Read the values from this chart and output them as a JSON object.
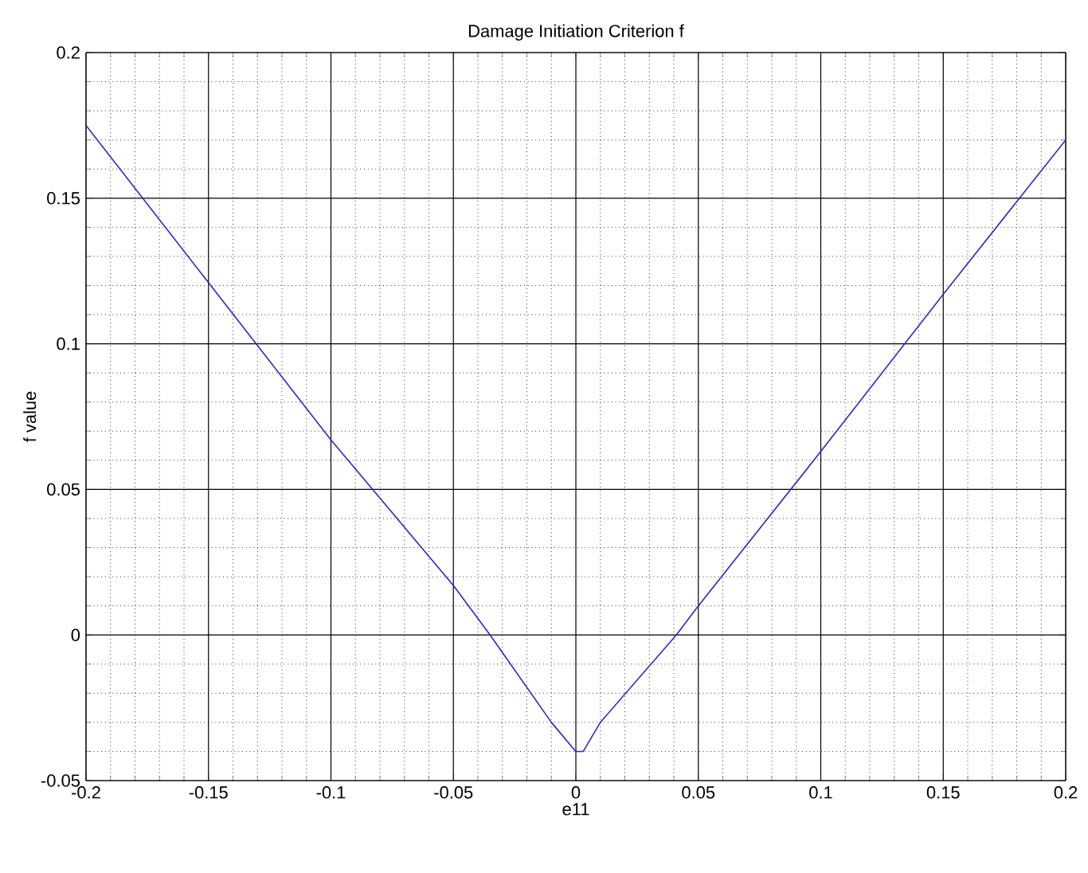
{
  "chart_data": {
    "type": "line",
    "title": "Damage Initiation Criterion f",
    "xlabel": "e11",
    "ylabel": "f value",
    "x": [
      -0.2,
      -0.15,
      -0.1,
      -0.05,
      -0.035,
      -0.01,
      0,
      0.003,
      0.01,
      0.041,
      0.05,
      0.1,
      0.15,
      0.2
    ],
    "series": [
      {
        "color": "#2a2ac0",
        "values": [
          0.175,
          0.121,
          0.067,
          0.017,
          0,
          -0.03,
          -0.04,
          -0.04,
          -0.03,
          0,
          0.01,
          0.063,
          0.117,
          0.17
        ]
      }
    ],
    "xlim": [
      -0.2,
      0.2
    ],
    "ylim": [
      -0.05,
      0.2
    ],
    "xticks": [
      -0.2,
      -0.15,
      -0.1,
      -0.05,
      0,
      0.05,
      0.1,
      0.15,
      0.2
    ],
    "yticks": [
      -0.05,
      0,
      0.05,
      0.1,
      0.15,
      0.2
    ],
    "grid": true,
    "line_style": "solid",
    "marker": "none"
  }
}
